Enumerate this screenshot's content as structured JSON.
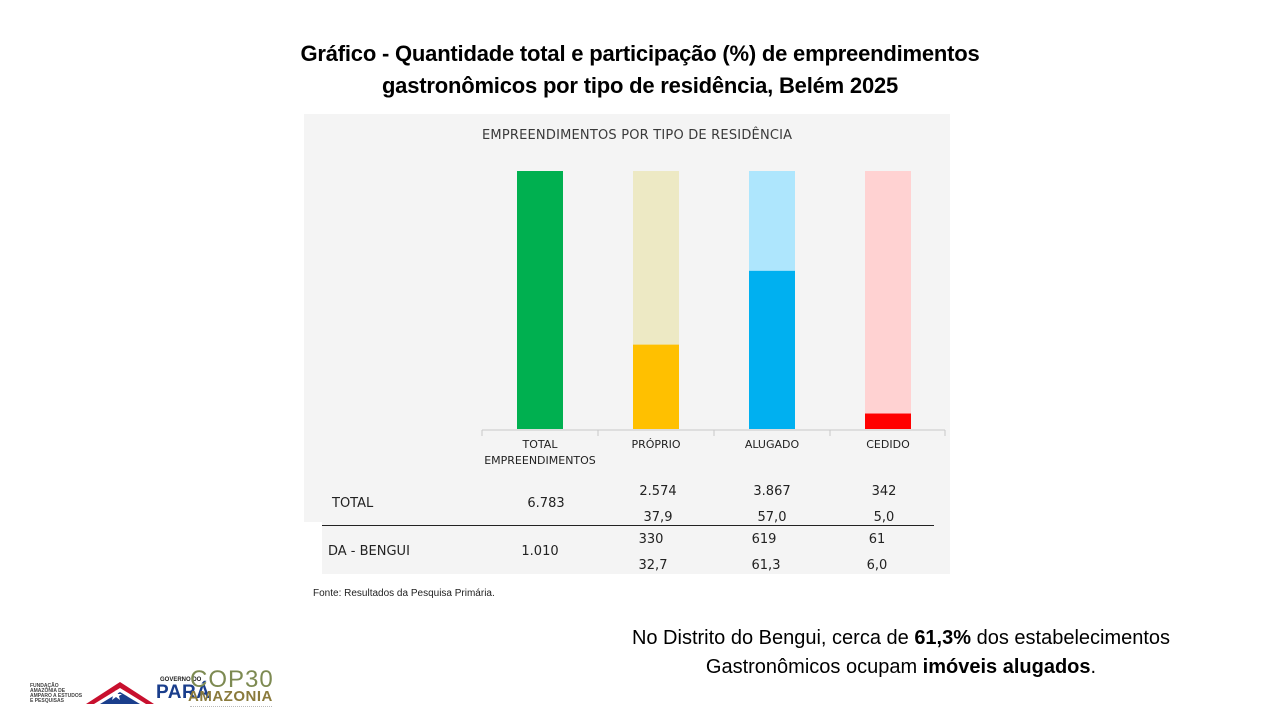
{
  "title_line1": "Gráfico - Quantidade total e participação (%) de empreendimentos",
  "title_line2": "gastronômicos por tipo de residência, Belém 2025",
  "chart_data": {
    "type": "bar",
    "title": "EMPREENDIMENTOS POR TIPO DE RESIDÊNCIA",
    "categories": [
      "TOTAL EMPREENDIMENTOS",
      "PRÓPRIO",
      "ALUGADO",
      "CEDIDO"
    ],
    "series": [
      {
        "name": "DA - BENGUI",
        "values": [
          100,
          32.7,
          61.3,
          6.0
        ]
      }
    ],
    "ylim": [
      0,
      100
    ],
    "colors": {
      "fill": [
        "#00b050",
        "#ffc000",
        "#00b0f0",
        "#ff0000"
      ],
      "background": [
        "#00b050",
        "#ede9c4",
        "#aee6fd",
        "#ffd2d2"
      ]
    },
    "table": {
      "rows": [
        {
          "label": "TOTAL",
          "total": "6.783",
          "proprio": [
            "2.574",
            "37,9"
          ],
          "alugado": [
            "3.867",
            "57,0"
          ],
          "cedido": [
            "342",
            "5,0"
          ]
        },
        {
          "label": "DA - BENGUI",
          "total": "1.010",
          "proprio": [
            "330",
            "32,7"
          ],
          "alugado": [
            "619",
            "61,3"
          ],
          "cedido": [
            "61",
            "6,0"
          ]
        }
      ]
    }
  },
  "tick_labels": {
    "total_line1": "TOTAL",
    "total_line2": "EMPREENDIMENTOS",
    "proprio": "PRÓPRIO",
    "alugado": "ALUGADO",
    "cedido": "CEDIDO"
  },
  "source": "Fonte: Resultados da Pesquisa Primária.",
  "note": {
    "part1": "No Distrito do Bengui, cerca de ",
    "bold1": "61,3%",
    "part2": " dos estabelecimentos",
    "part3": "Gastronômicos ocupam ",
    "bold2": "imóveis alugados",
    "part4": "."
  },
  "logos": {
    "fapespa": "FUNDAÇÃO AMAZÔNIA DE AMPARO A ESTUDOS E PESQUISAS",
    "gov": "GOVERNO DO",
    "para": "PARÁ",
    "cop": "COP30",
    "amazonia": "AMAZONIA"
  }
}
